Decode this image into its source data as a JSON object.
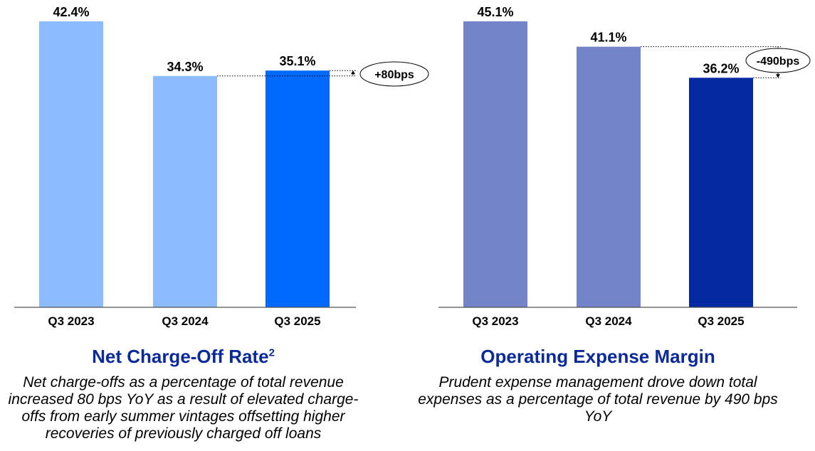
{
  "chart_data": [
    {
      "type": "bar",
      "title": "Net Charge-Off Rate",
      "title_superscript": "2",
      "caption": "Net charge-offs as a percentage of total revenue increased 80 bps YoY as a result of elevated charge-offs from early summer vintages offsetting higher recoveries of previously charged off loans",
      "categories": [
        "Q3 2023",
        "Q3 2024",
        "Q3 2025"
      ],
      "values": [
        42.4,
        34.3,
        35.1
      ],
      "value_labels": [
        "42.4%",
        "34.3%",
        "35.1%"
      ],
      "colors": [
        "#8cbcff",
        "#8cbcff",
        "#006aff"
      ],
      "annotation": {
        "text": "+80bps",
        "from_index": 1,
        "to_index": 2
      },
      "ylim": [
        0,
        42.4
      ],
      "grid": false
    },
    {
      "type": "bar",
      "title": "Operating Expense Margin",
      "caption": "Prudent expense management drove down total expenses as a percentage of total revenue by 490 bps YoY",
      "categories": [
        "Q3 2023",
        "Q3 2024",
        "Q3 2025"
      ],
      "values": [
        45.1,
        41.1,
        36.2
      ],
      "value_labels": [
        "45.1%",
        "41.1%",
        "36.2%"
      ],
      "colors": [
        "#7384c9",
        "#7384c9",
        "#0529a0"
      ],
      "annotation": {
        "text": "-490bps",
        "from_index": 1,
        "to_index": 2
      },
      "ylim": [
        0,
        45.1
      ],
      "grid": false
    }
  ]
}
